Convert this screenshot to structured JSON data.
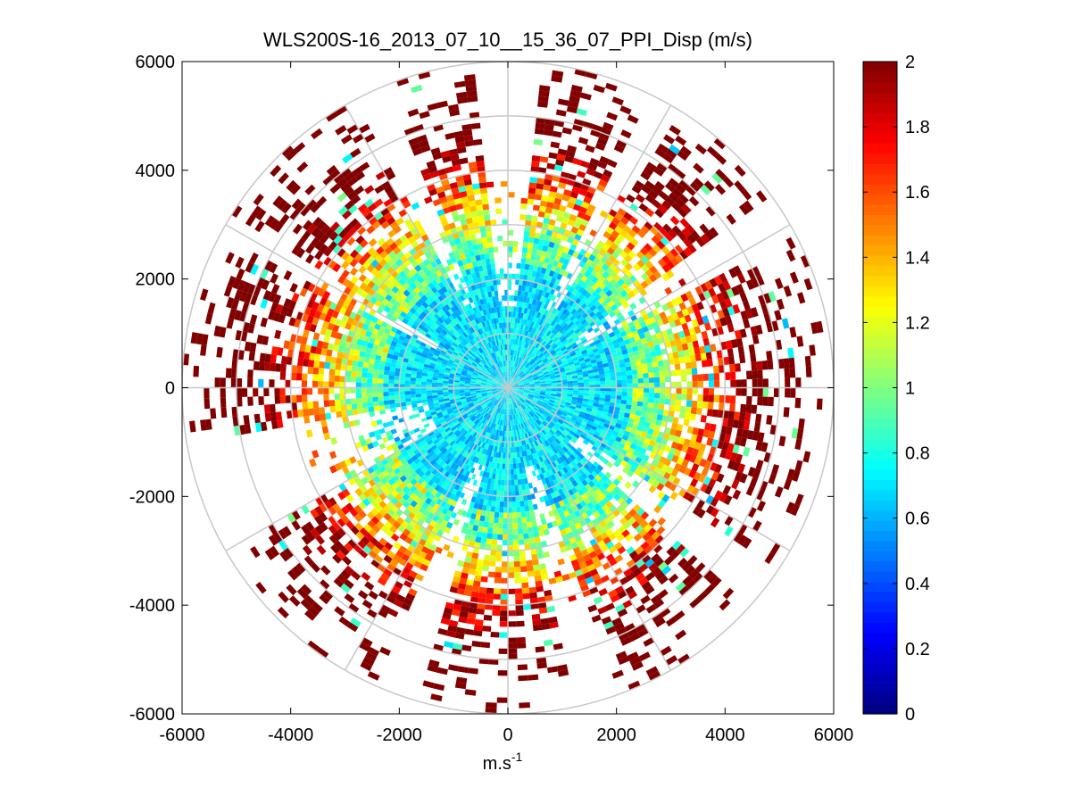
{
  "chart_data": {
    "type": "heatmap",
    "subtype": "polar-ppi",
    "title": "WLS200S-16_2013_07_10__15_36_07_PPI_Disp (m/s)",
    "xlabel": "m.s",
    "xlabel_superscript": "-1",
    "ylabel": "",
    "xlim": [
      -6000,
      6000
    ],
    "ylim": [
      -6000,
      6000
    ],
    "xticks": [
      -6000,
      -4000,
      -2000,
      0,
      2000,
      4000,
      6000
    ],
    "yticks": [
      6000,
      4000,
      2000,
      0,
      -2000,
      -4000,
      -6000
    ],
    "xtick_labels": [
      "-6000",
      "-4000",
      "-2000",
      "0",
      "2000",
      "4000",
      "6000"
    ],
    "ytick_labels": [
      "6000",
      "4000",
      "2000",
      "0",
      "-2000",
      "-4000",
      "-6000"
    ],
    "polar_grid": {
      "ring_radii": [
        1000,
        2000,
        3000,
        4000,
        5000,
        6000
      ],
      "spoke_angles_deg": [
        0,
        30,
        60,
        90,
        120,
        150,
        180,
        210,
        240,
        270,
        300,
        330
      ]
    },
    "colorbar": {
      "colormap": "jet",
      "range": [
        0,
        2
      ],
      "ticks": [
        0,
        0.2,
        0.4,
        0.6,
        0.8,
        1,
        1.2,
        1.4,
        1.6,
        1.8,
        2
      ],
      "tick_labels": [
        "0",
        "0.2",
        "0.4",
        "0.6",
        "0.8",
        "1",
        "1.2",
        "1.4",
        "1.6",
        "1.8",
        "2"
      ]
    },
    "field_description": {
      "max_range_m": 6000,
      "range_gate_m": 100,
      "inner_low_value_region_m": 2800,
      "typical_inner_value": 0.7,
      "outer_region_value": 2.0,
      "data_sparse_sectors_deg": [
        [
          85,
          95
        ],
        [
          28,
          36
        ],
        [
          58,
          64
        ],
        [
          148,
          152
        ],
        [
          112,
          118
        ],
        [
          190,
          210
        ],
        [
          246,
          254
        ],
        [
          282,
          290
        ],
        [
          318,
          326
        ]
      ]
    }
  },
  "colors": {
    "background": "#ffffff",
    "axis": "#000000",
    "grid": "#c8c8c8"
  }
}
